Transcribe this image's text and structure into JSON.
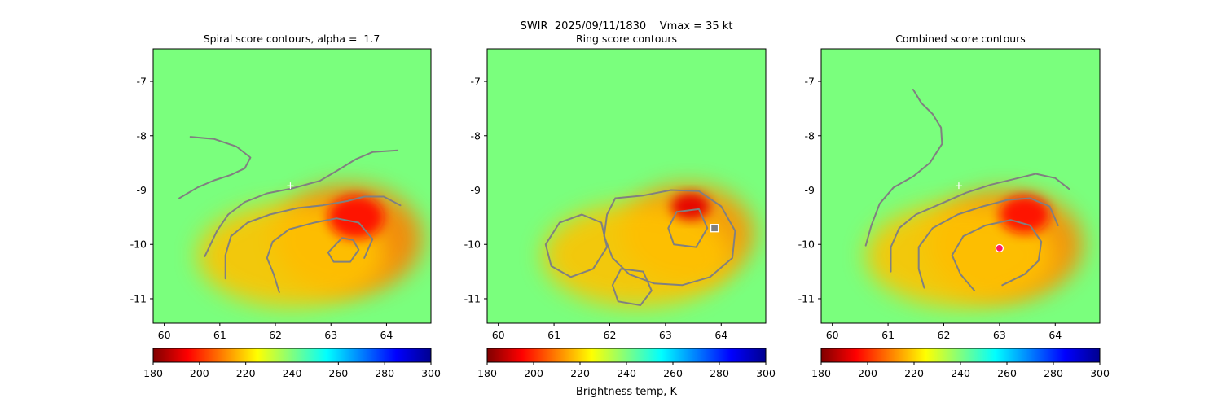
{
  "figure_title": "SWIR  2025/09/11/1830    Vmax = 35 kt",
  "colorbar_label": "Brightness temp, K",
  "chart_data": [
    {
      "type": "heatmap",
      "title": "Spiral score contours, alpha =  1.7",
      "x_ticks": [
        "60",
        "61",
        "62",
        "63",
        "64"
      ],
      "y_ticks": [
        "-7",
        "-8",
        "-9",
        "-10",
        "-11"
      ],
      "x_tick_values": [
        60,
        61,
        62,
        63,
        64
      ],
      "y_tick_values": [
        -7,
        -8,
        -9,
        -10,
        -11
      ],
      "xlim": [
        59.8,
        64.8
      ],
      "ylim": [
        -11.45,
        -6.4
      ],
      "colorbar": {
        "vmin": 180,
        "vmax": 300,
        "ticks": [
          "180",
          "200",
          "220",
          "240",
          "260",
          "280",
          "300"
        ],
        "tick_values": [
          180,
          200,
          220,
          240,
          260,
          280,
          300
        ]
      },
      "markers": [
        {
          "symbol": "plus",
          "lon": 62.27,
          "lat": -8.92,
          "color": "#ffffff"
        }
      ],
      "contours": [
        {
          "name": "spiral-arm-north",
          "points": [
            [
              60.27,
              -9.15
            ],
            [
              60.6,
              -8.95
            ],
            [
              60.9,
              -8.82
            ],
            [
              61.2,
              -8.72
            ],
            [
              61.45,
              -8.6
            ],
            [
              61.55,
              -8.4
            ],
            [
              61.3,
              -8.2
            ],
            [
              60.9,
              -8.06
            ],
            [
              60.47,
              -8.02
            ]
          ]
        },
        {
          "name": "spiral-arm-outer",
          "points": [
            [
              60.73,
              -10.22
            ],
            [
              60.95,
              -9.75
            ],
            [
              61.15,
              -9.45
            ],
            [
              61.45,
              -9.22
            ],
            [
              61.85,
              -9.06
            ],
            [
              62.3,
              -8.97
            ],
            [
              62.8,
              -8.83
            ],
            [
              63.1,
              -8.65
            ],
            [
              63.45,
              -8.43
            ],
            [
              63.75,
              -8.3
            ],
            [
              64.2,
              -8.27
            ]
          ]
        },
        {
          "name": "spiral-arm-middle",
          "points": [
            [
              61.1,
              -10.63
            ],
            [
              61.1,
              -10.2
            ],
            [
              61.2,
              -9.85
            ],
            [
              61.5,
              -9.6
            ],
            [
              61.9,
              -9.45
            ],
            [
              62.4,
              -9.33
            ],
            [
              62.85,
              -9.28
            ],
            [
              63.3,
              -9.2
            ],
            [
              63.6,
              -9.12
            ],
            [
              63.95,
              -9.12
            ],
            [
              64.25,
              -9.28
            ]
          ]
        },
        {
          "name": "spiral-arm-inner",
          "points": [
            [
              62.07,
              -10.88
            ],
            [
              61.97,
              -10.55
            ],
            [
              61.85,
              -10.25
            ],
            [
              61.95,
              -9.95
            ],
            [
              62.25,
              -9.72
            ],
            [
              62.7,
              -9.6
            ],
            [
              63.1,
              -9.52
            ],
            [
              63.5,
              -9.6
            ],
            [
              63.75,
              -9.9
            ],
            [
              63.6,
              -10.25
            ]
          ]
        },
        {
          "name": "eye-loop",
          "points": [
            [
              62.95,
              -10.15
            ],
            [
              63.2,
              -9.88
            ],
            [
              63.4,
              -9.92
            ],
            [
              63.5,
              -10.1
            ],
            [
              63.35,
              -10.32
            ],
            [
              63.05,
              -10.32
            ],
            [
              62.95,
              -10.15
            ]
          ]
        }
      ],
      "cold_regions": [
        {
          "lon": 63.3,
          "lat": -9.9,
          "rx": 1.35,
          "ry": 1.0,
          "bt": 210
        },
        {
          "lon": 62.3,
          "lat": -10.2,
          "rx": 1.7,
          "ry": 0.95,
          "bt": 218
        },
        {
          "lon": 63.45,
          "lat": -9.5,
          "rx": 0.5,
          "ry": 0.4,
          "bt": 197
        }
      ]
    },
    {
      "type": "heatmap",
      "title": "Ring score contours",
      "x_ticks": [
        "60",
        "61",
        "62",
        "63",
        "64"
      ],
      "y_ticks": [
        "-7",
        "-8",
        "-9",
        "-10",
        "-11"
      ],
      "x_tick_values": [
        60,
        61,
        62,
        63,
        64
      ],
      "y_tick_values": [
        -7,
        -8,
        -9,
        -10,
        -11
      ],
      "xlim": [
        59.8,
        64.8
      ],
      "ylim": [
        -11.45,
        -6.4
      ],
      "colorbar": {
        "vmin": 180,
        "vmax": 300,
        "ticks": [
          "180",
          "200",
          "220",
          "240",
          "260",
          "280",
          "300"
        ],
        "tick_values": [
          180,
          200,
          220,
          240,
          260,
          280,
          300
        ]
      },
      "markers": [
        {
          "symbol": "square",
          "lon": 63.88,
          "lat": -9.7,
          "color": "#ffffff"
        }
      ],
      "contours": [
        {
          "name": "ring-region-east",
          "points": [
            [
              62.1,
              -9.15
            ],
            [
              62.6,
              -9.1
            ],
            [
              63.1,
              -9.0
            ],
            [
              63.6,
              -9.02
            ],
            [
              64.0,
              -9.3
            ],
            [
              64.25,
              -9.75
            ],
            [
              64.2,
              -10.25
            ],
            [
              63.8,
              -10.6
            ],
            [
              63.3,
              -10.75
            ],
            [
              62.8,
              -10.72
            ],
            [
              62.35,
              -10.55
            ],
            [
              62.05,
              -10.25
            ],
            [
              61.9,
              -9.85
            ],
            [
              61.95,
              -9.45
            ],
            [
              62.1,
              -9.15
            ]
          ]
        },
        {
          "name": "ring-region-west",
          "points": [
            [
              61.1,
              -9.6
            ],
            [
              61.5,
              -9.45
            ],
            [
              61.85,
              -9.6
            ],
            [
              61.95,
              -10.05
            ],
            [
              61.7,
              -10.45
            ],
            [
              61.3,
              -10.6
            ],
            [
              60.95,
              -10.4
            ],
            [
              60.85,
              -10.0
            ],
            [
              61.1,
              -9.6
            ]
          ]
        },
        {
          "name": "ring-region-south",
          "points": [
            [
              62.2,
              -10.45
            ],
            [
              62.6,
              -10.5
            ],
            [
              62.75,
              -10.85
            ],
            [
              62.55,
              -11.12
            ],
            [
              62.15,
              -11.05
            ],
            [
              62.05,
              -10.75
            ],
            [
              62.2,
              -10.45
            ]
          ]
        },
        {
          "name": "ring-region-inner",
          "points": [
            [
              63.2,
              -9.4
            ],
            [
              63.6,
              -9.35
            ],
            [
              63.75,
              -9.7
            ],
            [
              63.55,
              -10.05
            ],
            [
              63.15,
              -10.0
            ],
            [
              63.05,
              -9.7
            ],
            [
              63.2,
              -9.4
            ]
          ]
        }
      ],
      "cold_regions": [
        {
          "lon": 63.4,
          "lat": -9.8,
          "rx": 1.2,
          "ry": 0.9,
          "bt": 212
        },
        {
          "lon": 62.5,
          "lat": -10.2,
          "rx": 1.7,
          "ry": 0.95,
          "bt": 218
        },
        {
          "lon": 63.45,
          "lat": -9.3,
          "rx": 0.35,
          "ry": 0.25,
          "bt": 192
        }
      ]
    },
    {
      "type": "heatmap",
      "title": "Combined score contours",
      "x_ticks": [
        "60",
        "61",
        "62",
        "63",
        "64"
      ],
      "y_ticks": [
        "-7",
        "-8",
        "-9",
        "-10",
        "-11"
      ],
      "x_tick_values": [
        60,
        61,
        62,
        63,
        64
      ],
      "y_tick_values": [
        -7,
        -8,
        -9,
        -10,
        -11
      ],
      "xlim": [
        59.8,
        64.8
      ],
      "ylim": [
        -11.45,
        -6.4
      ],
      "colorbar": {
        "vmin": 180,
        "vmax": 300,
        "ticks": [
          "180",
          "200",
          "220",
          "240",
          "260",
          "280",
          "300"
        ],
        "tick_values": [
          180,
          200,
          220,
          240,
          260,
          280,
          300
        ]
      },
      "markers": [
        {
          "symbol": "plus",
          "lon": 62.27,
          "lat": -8.92,
          "color": "#ffffff"
        },
        {
          "symbol": "circle",
          "lon": 63.0,
          "lat": -10.07,
          "color": "#ff1a66"
        }
      ],
      "contours": [
        {
          "name": "combined-arm-north",
          "points": [
            [
              61.45,
              -7.15
            ],
            [
              61.6,
              -7.4
            ],
            [
              61.8,
              -7.6
            ],
            [
              61.95,
              -7.85
            ],
            [
              61.97,
              -8.15
            ],
            [
              61.75,
              -8.5
            ],
            [
              61.45,
              -8.75
            ],
            [
              61.1,
              -8.95
            ],
            [
              60.85,
              -9.25
            ],
            [
              60.7,
              -9.65
            ],
            [
              60.6,
              -10.02
            ]
          ]
        },
        {
          "name": "combined-arm-outer",
          "points": [
            [
              61.05,
              -10.5
            ],
            [
              61.05,
              -10.05
            ],
            [
              61.2,
              -9.7
            ],
            [
              61.5,
              -9.45
            ],
            [
              61.95,
              -9.25
            ],
            [
              62.4,
              -9.05
            ],
            [
              62.85,
              -8.9
            ],
            [
              63.25,
              -8.8
            ],
            [
              63.65,
              -8.7
            ],
            [
              64.0,
              -8.78
            ],
            [
              64.25,
              -8.98
            ]
          ]
        },
        {
          "name": "combined-arm-middle",
          "points": [
            [
              61.65,
              -10.8
            ],
            [
              61.55,
              -10.45
            ],
            [
              61.55,
              -10.05
            ],
            [
              61.8,
              -9.7
            ],
            [
              62.25,
              -9.45
            ],
            [
              62.7,
              -9.3
            ],
            [
              63.15,
              -9.18
            ],
            [
              63.55,
              -9.15
            ],
            [
              63.9,
              -9.3
            ],
            [
              64.05,
              -9.65
            ]
          ]
        },
        {
          "name": "combined-arm-inner",
          "points": [
            [
              62.55,
              -10.85
            ],
            [
              62.3,
              -10.55
            ],
            [
              62.15,
              -10.2
            ],
            [
              62.35,
              -9.85
            ],
            [
              62.75,
              -9.65
            ],
            [
              63.2,
              -9.55
            ],
            [
              63.55,
              -9.65
            ],
            [
              63.75,
              -9.95
            ],
            [
              63.7,
              -10.3
            ],
            [
              63.45,
              -10.55
            ],
            [
              63.05,
              -10.75
            ]
          ]
        }
      ],
      "cold_regions": [
        {
          "lon": 63.1,
          "lat": -10.0,
          "rx": 1.4,
          "ry": 1.0,
          "bt": 211
        },
        {
          "lon": 62.3,
          "lat": -10.2,
          "rx": 1.7,
          "ry": 0.95,
          "bt": 218
        },
        {
          "lon": 63.45,
          "lat": -9.45,
          "rx": 0.45,
          "ry": 0.35,
          "bt": 197
        }
      ]
    }
  ]
}
